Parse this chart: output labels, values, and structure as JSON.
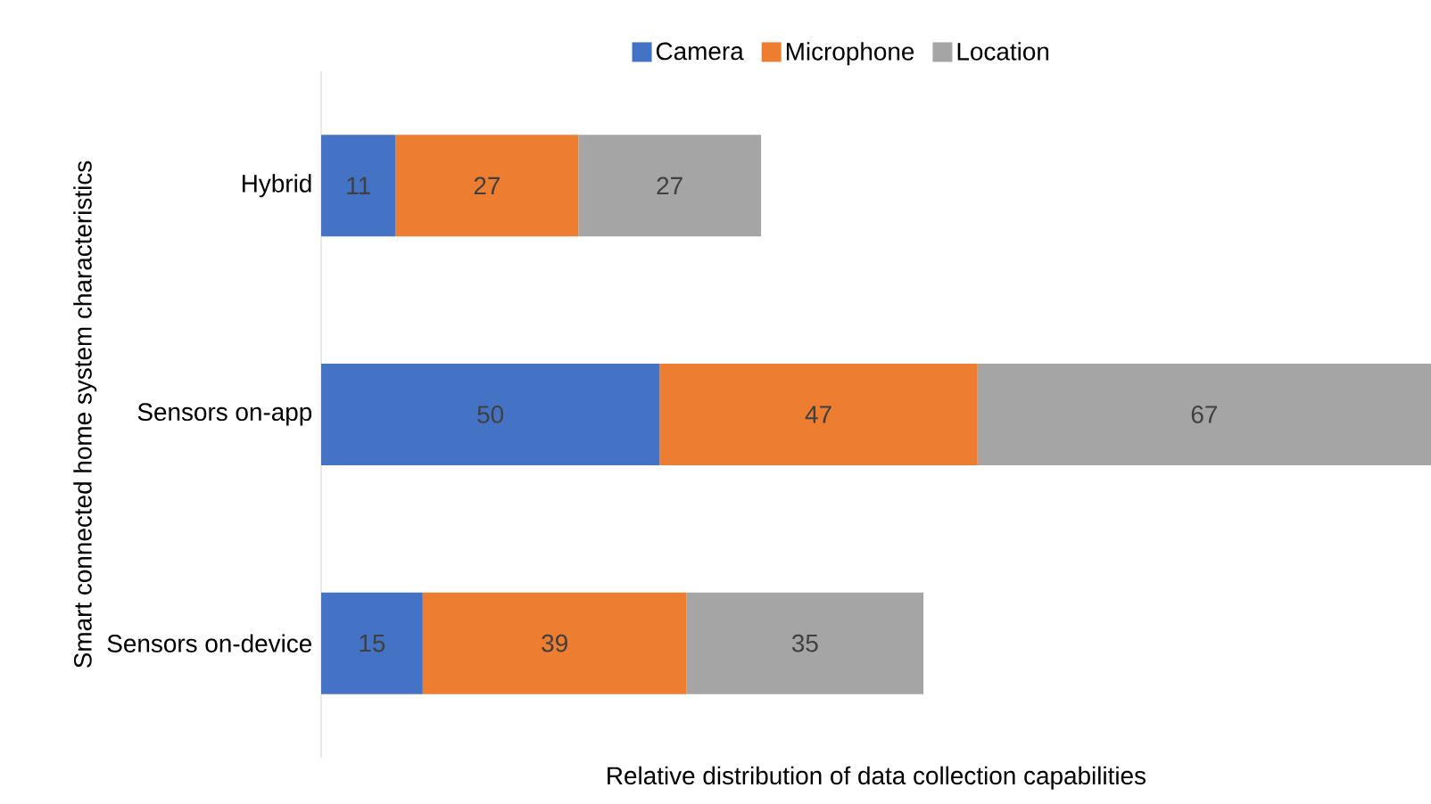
{
  "chart_data": {
    "type": "bar",
    "orientation": "horizontal",
    "stacked": true,
    "data_labels": true,
    "legend": "top",
    "xlabel": "Relative distribution of data collection capabilities",
    "ylabel": "Smart connected home system characteristics",
    "categories": [
      "Hybrid",
      "Sensors on-app",
      "Sensors on-device"
    ],
    "series": [
      {
        "name": "Camera",
        "color": "#4472c4",
        "values": [
          11,
          50,
          15
        ]
      },
      {
        "name": "Microphone",
        "color": "#ed7d31",
        "values": [
          27,
          47,
          39
        ]
      },
      {
        "name": "Location",
        "color": "#a5a5a5",
        "values": [
          27,
          67,
          35
        ]
      }
    ]
  }
}
